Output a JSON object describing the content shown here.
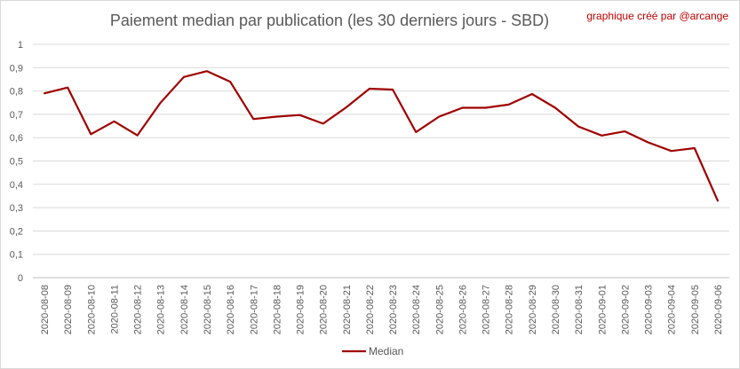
{
  "chart_data": {
    "type": "line",
    "title": "Paiement median par publication (les 30 derniers jours - SBD)",
    "credit": "graphique créé par @arcange",
    "xlabel": "",
    "ylabel": "",
    "ylim": [
      0,
      1
    ],
    "yticks": [
      "0",
      "0,1",
      "0,2",
      "0,3",
      "0,4",
      "0,5",
      "0,6",
      "0,7",
      "0,8",
      "0,9",
      "1"
    ],
    "grid": true,
    "legend_position": "bottom",
    "categories": [
      "2020-08-08",
      "2020-08-09",
      "2020-08-10",
      "2020-08-11",
      "2020-08-12",
      "2020-08-13",
      "2020-08-14",
      "2020-08-15",
      "2020-08-16",
      "2020-08-17",
      "2020-08-18",
      "2020-08-19",
      "2020-08-20",
      "2020-08-21",
      "2020-08-22",
      "2020-08-23",
      "2020-08-24",
      "2020-08-25",
      "2020-08-26",
      "2020-08-27",
      "2020-08-28",
      "2020-08-29",
      "2020-08-30",
      "2020-08-31",
      "2020-09-01",
      "2020-09-02",
      "2020-09-03",
      "2020-09-04",
      "2020-09-05",
      "2020-09-06"
    ],
    "series": [
      {
        "name": "Median",
        "color": "#a00000",
        "values": [
          0.79,
          0.815,
          0.615,
          0.67,
          0.61,
          0.75,
          0.86,
          0.885,
          0.84,
          0.68,
          0.69,
          0.697,
          0.66,
          0.73,
          0.81,
          0.806,
          0.624,
          0.69,
          0.728,
          0.728,
          0.742,
          0.787,
          0.728,
          0.648,
          0.609,
          0.627,
          0.58,
          0.543,
          0.555,
          0.33
        ]
      }
    ]
  }
}
